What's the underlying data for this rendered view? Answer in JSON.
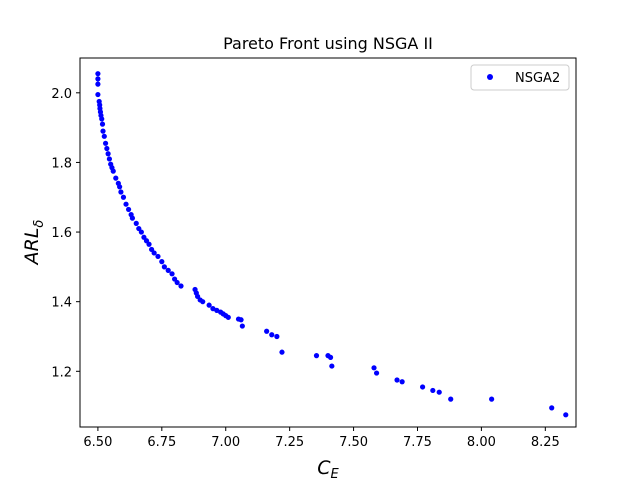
{
  "chart_data": {
    "type": "scatter",
    "title": "Pareto Front using NSGA II",
    "xlabel_main": "C",
    "xlabel_sub": "E",
    "ylabel_main": "ARL",
    "ylabel_sub": "δ",
    "xlim": [
      6.43,
      8.37
    ],
    "ylim": [
      1.04,
      2.1
    ],
    "xticks": [
      6.5,
      6.75,
      7.0,
      7.25,
      7.5,
      7.75,
      8.0,
      8.25
    ],
    "xtick_labels": [
      "6.50",
      "6.75",
      "7.00",
      "7.25",
      "7.50",
      "7.75",
      "8.00",
      "8.25"
    ],
    "yticks": [
      1.2,
      1.4,
      1.6,
      1.8,
      2.0
    ],
    "ytick_labels": [
      "1.2",
      "1.4",
      "1.6",
      "1.8",
      "2.0"
    ],
    "grid": false,
    "legend_position": "top-right",
    "series": [
      {
        "name": "NSGA2",
        "color": "#0000ff",
        "marker": "circle",
        "points": [
          [
            6.5,
            2.055
          ],
          [
            6.5,
            2.04
          ],
          [
            6.5,
            2.025
          ],
          [
            6.5,
            1.995
          ],
          [
            6.505,
            1.975
          ],
          [
            6.507,
            1.965
          ],
          [
            6.508,
            1.955
          ],
          [
            6.51,
            1.945
          ],
          [
            6.512,
            1.935
          ],
          [
            6.515,
            1.925
          ],
          [
            6.518,
            1.91
          ],
          [
            6.52,
            1.89
          ],
          [
            6.525,
            1.875
          ],
          [
            6.53,
            1.855
          ],
          [
            6.535,
            1.84
          ],
          [
            6.54,
            1.825
          ],
          [
            6.545,
            1.81
          ],
          [
            6.55,
            1.795
          ],
          [
            6.555,
            1.785
          ],
          [
            6.56,
            1.775
          ],
          [
            6.57,
            1.755
          ],
          [
            6.58,
            1.74
          ],
          [
            6.585,
            1.73
          ],
          [
            6.59,
            1.715
          ],
          [
            6.6,
            1.7
          ],
          [
            6.61,
            1.68
          ],
          [
            6.62,
            1.665
          ],
          [
            6.63,
            1.65
          ],
          [
            6.635,
            1.64
          ],
          [
            6.65,
            1.625
          ],
          [
            6.66,
            1.61
          ],
          [
            6.67,
            1.6
          ],
          [
            6.68,
            1.585
          ],
          [
            6.69,
            1.575
          ],
          [
            6.7,
            1.565
          ],
          [
            6.71,
            1.55
          ],
          [
            6.72,
            1.54
          ],
          [
            6.735,
            1.53
          ],
          [
            6.75,
            1.515
          ],
          [
            6.76,
            1.5
          ],
          [
            6.775,
            1.49
          ],
          [
            6.79,
            1.48
          ],
          [
            6.8,
            1.465
          ],
          [
            6.81,
            1.455
          ],
          [
            6.825,
            1.445
          ],
          [
            6.88,
            1.435
          ],
          [
            6.885,
            1.425
          ],
          [
            6.89,
            1.415
          ],
          [
            6.9,
            1.405
          ],
          [
            6.91,
            1.4
          ],
          [
            6.935,
            1.39
          ],
          [
            6.95,
            1.38
          ],
          [
            6.965,
            1.375
          ],
          [
            6.98,
            1.37
          ],
          [
            6.99,
            1.365
          ],
          [
            7.0,
            1.36
          ],
          [
            7.01,
            1.355
          ],
          [
            7.05,
            1.35
          ],
          [
            7.06,
            1.348
          ],
          [
            7.065,
            1.33
          ],
          [
            7.16,
            1.315
          ],
          [
            7.18,
            1.305
          ],
          [
            7.2,
            1.3
          ],
          [
            7.22,
            1.255
          ],
          [
            7.355,
            1.245
          ],
          [
            7.4,
            1.245
          ],
          [
            7.41,
            1.24
          ],
          [
            7.415,
            1.215
          ],
          [
            7.58,
            1.21
          ],
          [
            7.59,
            1.195
          ],
          [
            7.67,
            1.175
          ],
          [
            7.69,
            1.17
          ],
          [
            7.77,
            1.155
          ],
          [
            7.81,
            1.145
          ],
          [
            7.835,
            1.14
          ],
          [
            7.88,
            1.12
          ],
          [
            8.04,
            1.12
          ],
          [
            8.275,
            1.095
          ],
          [
            8.33,
            1.075
          ]
        ]
      }
    ]
  }
}
